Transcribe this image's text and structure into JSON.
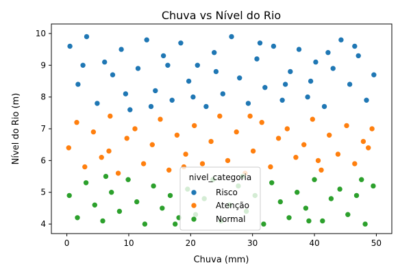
{
  "chart_data": {
    "type": "scatter",
    "title": "Chuva vs Nível do Rio",
    "xlabel": "Chuva (mm)",
    "ylabel": "Nível do Rio (m)",
    "xlim": [
      -2.5,
      52.5
    ],
    "ylim": [
      3.7,
      10.3
    ],
    "x_ticks": [
      0,
      10,
      20,
      30,
      40,
      50
    ],
    "y_ticks": [
      4,
      5,
      6,
      7,
      8,
      9,
      10
    ],
    "grid": false,
    "legend": {
      "title": "nivel_categoria",
      "placement": "bottom-center"
    },
    "series": [
      {
        "name": "Risco",
        "color": "#1f77b4",
        "y_range": [
          7.5,
          10.0
        ],
        "points": [
          [
            0.5,
            9.6
          ],
          [
            1.8,
            8.4
          ],
          [
            3.2,
            9.9
          ],
          [
            4.9,
            7.8
          ],
          [
            6.1,
            9.1
          ],
          [
            7.4,
            8.7
          ],
          [
            8.8,
            9.5
          ],
          [
            10.2,
            7.6
          ],
          [
            11.5,
            8.9
          ],
          [
            12.9,
            9.8
          ],
          [
            14.3,
            8.2
          ],
          [
            15.6,
            9.3
          ],
          [
            17.0,
            7.9
          ],
          [
            18.4,
            9.7
          ],
          [
            19.7,
            8.5
          ],
          [
            21.1,
            9.0
          ],
          [
            22.5,
            7.7
          ],
          [
            23.8,
            9.4
          ],
          [
            25.2,
            8.1
          ],
          [
            26.6,
            9.9
          ],
          [
            27.9,
            8.6
          ],
          [
            29.3,
            7.8
          ],
          [
            30.7,
            9.2
          ],
          [
            32.0,
            8.3
          ],
          [
            33.4,
            9.6
          ],
          [
            34.8,
            7.9
          ],
          [
            36.1,
            8.8
          ],
          [
            37.5,
            9.5
          ],
          [
            38.9,
            8.0
          ],
          [
            40.2,
            9.1
          ],
          [
            41.6,
            7.7
          ],
          [
            43.0,
            8.9
          ],
          [
            44.3,
            9.8
          ],
          [
            45.7,
            8.4
          ],
          [
            47.1,
            9.3
          ],
          [
            48.4,
            7.9
          ],
          [
            49.6,
            8.7
          ],
          [
            2.6,
            9.0
          ],
          [
            9.5,
            8.1
          ],
          [
            16.3,
            9.0
          ],
          [
            24.1,
            8.8
          ],
          [
            31.2,
            9.7
          ],
          [
            39.4,
            8.5
          ],
          [
            46.5,
            9.6
          ],
          [
            13.6,
            7.7
          ],
          [
            35.3,
            8.4
          ],
          [
            20.4,
            8.0
          ],
          [
            42.2,
            9.4
          ]
        ]
      },
      {
        "name": "Atenção",
        "color": "#ff7f0e",
        "y_range": [
          5.5,
          7.5
        ],
        "points": [
          [
            0.3,
            6.4
          ],
          [
            1.6,
            7.2
          ],
          [
            2.9,
            5.8
          ],
          [
            4.3,
            6.9
          ],
          [
            5.6,
            6.1
          ],
          [
            7.0,
            7.4
          ],
          [
            8.3,
            5.6
          ],
          [
            9.7,
            6.7
          ],
          [
            11.0,
            7.0
          ],
          [
            12.4,
            5.9
          ],
          [
            13.8,
            6.5
          ],
          [
            15.1,
            7.3
          ],
          [
            16.5,
            5.7
          ],
          [
            17.8,
            6.8
          ],
          [
            19.2,
            6.2
          ],
          [
            20.6,
            7.1
          ],
          [
            21.9,
            5.9
          ],
          [
            23.3,
            6.6
          ],
          [
            24.7,
            7.4
          ],
          [
            26.0,
            6.0
          ],
          [
            27.4,
            6.9
          ],
          [
            28.8,
            5.6
          ],
          [
            30.1,
            6.3
          ],
          [
            31.5,
            7.2
          ],
          [
            32.9,
            5.8
          ],
          [
            34.2,
            6.7
          ],
          [
            35.6,
            7.0
          ],
          [
            37.0,
            6.1
          ],
          [
            38.3,
            6.5
          ],
          [
            39.7,
            7.3
          ],
          [
            41.1,
            5.7
          ],
          [
            42.4,
            6.8
          ],
          [
            43.8,
            6.2
          ],
          [
            45.2,
            7.1
          ],
          [
            46.5,
            5.9
          ],
          [
            47.9,
            6.6
          ],
          [
            49.3,
            7.0
          ],
          [
            6.8,
            6.3
          ],
          [
            18.9,
            5.8
          ],
          [
            29.6,
            7.4
          ],
          [
            40.6,
            6.0
          ],
          [
            48.7,
            6.4
          ]
        ]
      },
      {
        "name": "Normal",
        "color": "#2ca02c",
        "y_range": [
          4.0,
          5.5
        ],
        "points": [
          [
            0.4,
            4.9
          ],
          [
            1.7,
            4.2
          ],
          [
            3.1,
            5.3
          ],
          [
            4.5,
            4.6
          ],
          [
            5.8,
            4.1
          ],
          [
            7.2,
            5.0
          ],
          [
            8.5,
            4.4
          ],
          [
            9.9,
            5.4
          ],
          [
            11.3,
            4.7
          ],
          [
            12.6,
            4.0
          ],
          [
            14.0,
            5.2
          ],
          [
            15.4,
            4.5
          ],
          [
            16.7,
            4.9
          ],
          [
            18.1,
            4.2
          ],
          [
            19.5,
            5.1
          ],
          [
            20.8,
            4.3
          ],
          [
            22.2,
            4.8
          ],
          [
            23.6,
            5.4
          ],
          [
            24.9,
            4.1
          ],
          [
            26.3,
            4.6
          ],
          [
            27.7,
            5.2
          ],
          [
            29.0,
            4.4
          ],
          [
            30.4,
            4.9
          ],
          [
            31.8,
            4.0
          ],
          [
            33.1,
            5.3
          ],
          [
            34.5,
            4.7
          ],
          [
            35.9,
            4.2
          ],
          [
            37.2,
            5.0
          ],
          [
            38.6,
            4.5
          ],
          [
            40.0,
            5.4
          ],
          [
            41.3,
            4.1
          ],
          [
            42.7,
            4.8
          ],
          [
            44.1,
            5.1
          ],
          [
            45.4,
            4.3
          ],
          [
            46.8,
            4.9
          ],
          [
            48.2,
            4.0
          ],
          [
            49.5,
            5.2
          ],
          [
            6.3,
            5.5
          ],
          [
            17.5,
            4.0
          ],
          [
            28.4,
            5.5
          ],
          [
            39.1,
            4.1
          ],
          [
            47.6,
            5.4
          ]
        ]
      }
    ]
  }
}
